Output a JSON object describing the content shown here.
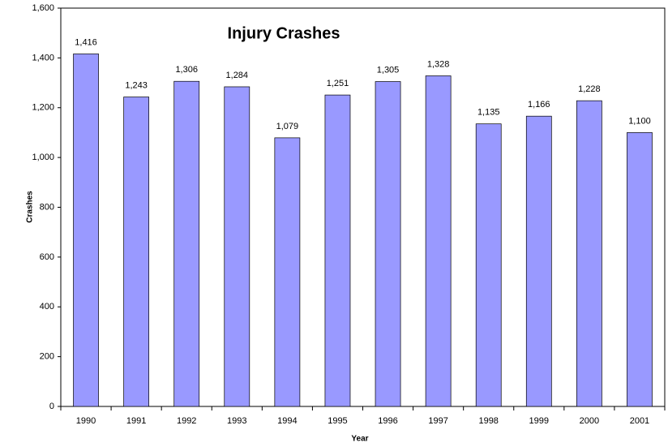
{
  "chart_data": {
    "type": "bar",
    "title": "Injury Crashes",
    "xlabel": "Year",
    "ylabel": "Crashes",
    "categories": [
      "1990",
      "1991",
      "1992",
      "1993",
      "1994",
      "1995",
      "1996",
      "1997",
      "1998",
      "1999",
      "2000",
      "2001"
    ],
    "values": [
      1416,
      1243,
      1306,
      1284,
      1079,
      1251,
      1305,
      1328,
      1135,
      1166,
      1228,
      1100
    ],
    "value_labels": [
      "1,416",
      "1,243",
      "1,306",
      "1,284",
      "1,079",
      "1,251",
      "1,305",
      "1,328",
      "1,135",
      "1,166",
      "1,228",
      "1,100"
    ],
    "color": "#9999ff",
    "ylim": [
      0,
      1600
    ],
    "yticks": [
      0,
      200,
      400,
      600,
      800,
      {
        "value": 1000,
        "label": "1,000"
      },
      {
        "value": 1200,
        "label": "1,200"
      },
      {
        "value": 1400,
        "label": "1,400"
      },
      {
        "value": 1600,
        "label": "1,600"
      }
    ],
    "grid": false
  }
}
